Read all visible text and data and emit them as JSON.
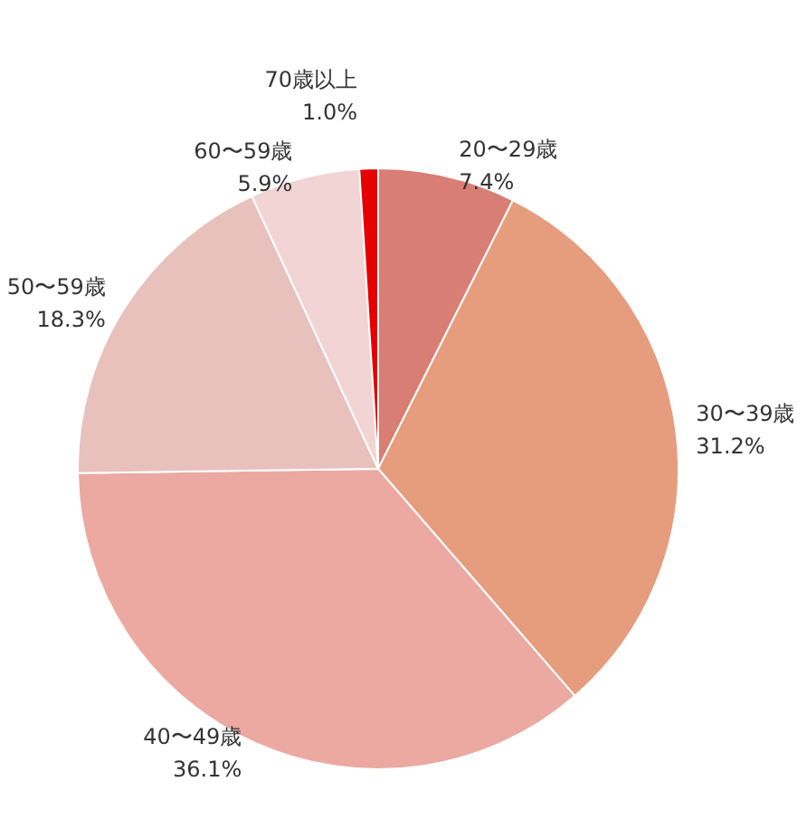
{
  "chart_data": {
    "type": "pie",
    "categories": [
      "20〜29歳",
      "30〜39歳",
      "40〜49歳",
      "50〜59歳",
      "60〜59歳",
      "70歳以上"
    ],
    "values": [
      7.4,
      31.2,
      36.1,
      18.3,
      5.9,
      1.0
    ],
    "value_labels": [
      "7.4%",
      "31.2%",
      "36.1%",
      "18.3%",
      "5.9%",
      "1.0%"
    ],
    "colors": [
      "#d97e74",
      "#e59d7e",
      "#eba9a2",
      "#e9c1bc",
      "#f2d4d4",
      "#e60000"
    ]
  }
}
